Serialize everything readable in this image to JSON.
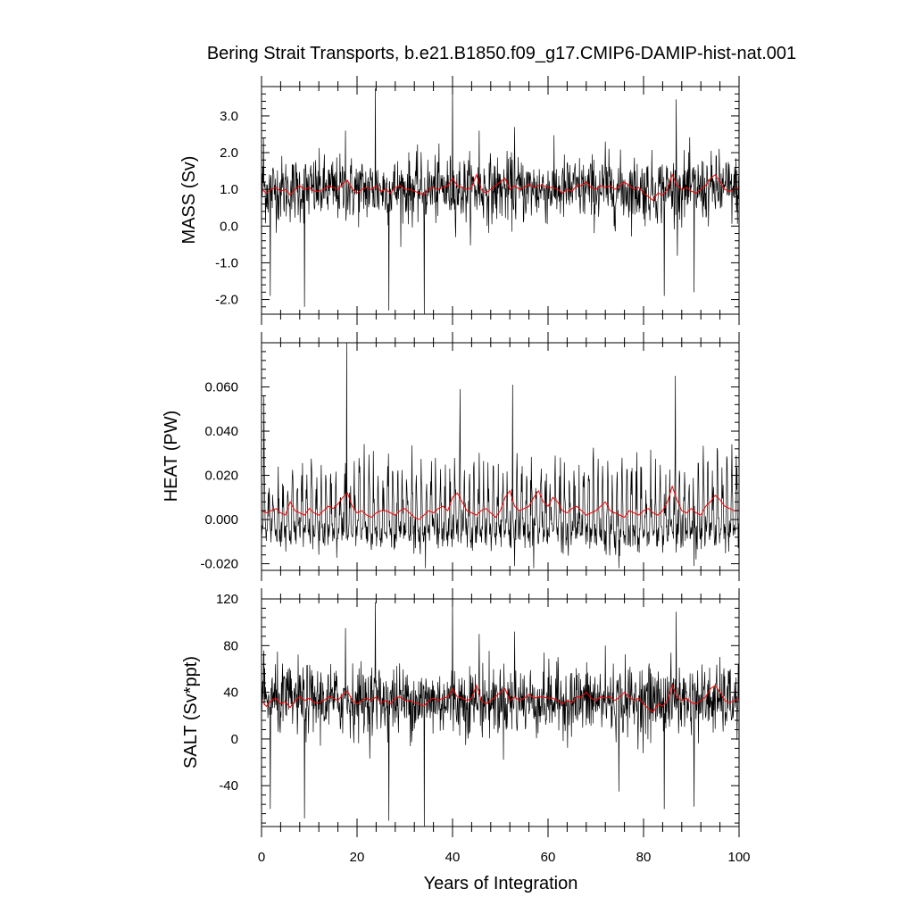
{
  "title": "Bering Strait Transports, b.e21.B1850.f09_g17.CMIP6-DAMIP-hist-nat.001",
  "xlabel": "Years of Integration",
  "colors": {
    "raw": "#000000",
    "smooth": "#ff0000",
    "frame": "#000000"
  },
  "chart_data": [
    {
      "type": "line",
      "panel": "mass",
      "title": "",
      "xlabel": "",
      "ylabel": "MASS (Sv)",
      "xlim": [
        0,
        100
      ],
      "ylim": [
        -2.4,
        3.8
      ],
      "yticks": [
        -2.0,
        -1.0,
        0.0,
        1.0,
        2.0,
        3.0
      ],
      "ytick_labels": [
        "-2.0",
        "-1.0",
        "0.0",
        "1.0",
        "2.0",
        "3.0"
      ],
      "xticks": [
        0,
        20,
        40,
        60,
        80,
        100
      ],
      "series": [
        {
          "style": "monthly",
          "samples_per_year": 12,
          "mean": 1.0,
          "sd": 0.45,
          "spikes": [
            {
              "x": 0.4,
              "y": 2.4
            },
            {
              "x": 1.8,
              "y": -1.9
            },
            {
              "x": 9.0,
              "y": -2.2
            },
            {
              "x": 17.6,
              "y": 2.6
            },
            {
              "x": 23.8,
              "y": 3.75
            },
            {
              "x": 26.7,
              "y": -2.3
            },
            {
              "x": 34.1,
              "y": -2.4
            },
            {
              "x": 40.0,
              "y": 3.8
            },
            {
              "x": 45.6,
              "y": 2.6
            },
            {
              "x": 53.0,
              "y": 2.7
            },
            {
              "x": 72.0,
              "y": 2.3
            },
            {
              "x": 84.3,
              "y": -1.9
            },
            {
              "x": 86.8,
              "y": 3.45
            },
            {
              "x": 90.6,
              "y": -1.8
            },
            {
              "x": 95.8,
              "y": 2.1
            }
          ]
        },
        {
          "style": "annual",
          "values": [
            1.0,
            0.9,
            1.0,
            1.05,
            0.95,
            1.0,
            0.85,
            1.0,
            1.1,
            1.0,
            1.05,
            0.95,
            0.95,
            1.0,
            1.1,
            1.05,
            1.0,
            1.15,
            1.25,
            1.0,
            0.9,
            1.0,
            1.05,
            1.0,
            1.1,
            0.95,
            1.0,
            0.9,
            1.05,
            1.1,
            1.0,
            1.0,
            0.95,
            0.9,
            0.85,
            1.0,
            1.05,
            1.0,
            1.05,
            1.1,
            1.3,
            1.1,
            1.05,
            1.0,
            1.05,
            1.4,
            1.0,
            0.9,
            1.0,
            1.1,
            1.2,
            1.3,
            1.0,
            1.1,
            1.0,
            1.05,
            1.15,
            1.05,
            1.1,
            1.1,
            1.05,
            1.05,
            1.0,
            0.9,
            1.0,
            0.95,
            1.1,
            1.1,
            1.2,
            1.05,
            1.0,
            1.1,
            1.05,
            1.1,
            1.0,
            1.1,
            1.2,
            1.1,
            1.0,
            1.05,
            0.9,
            0.8,
            0.7,
            0.9,
            0.85,
            1.0,
            1.4,
            1.1,
            1.0,
            1.05,
            0.95,
            0.9,
            1.0,
            1.1,
            1.3,
            1.4,
            1.2,
            1.0,
            0.95,
            1.0,
            1.05
          ]
        }
      ]
    },
    {
      "type": "line",
      "panel": "heat",
      "title": "",
      "xlabel": "",
      "ylabel": "HEAT (PW)",
      "xlim": [
        0,
        100
      ],
      "ylim": [
        -0.023,
        0.08
      ],
      "yticks": [
        -0.02,
        0.0,
        0.02,
        0.04,
        0.06
      ],
      "ytick_labels": [
        "-0.020",
        "0.000",
        "0.020",
        "0.040",
        "0.060"
      ],
      "xticks": [
        0,
        20,
        40,
        60,
        80,
        100
      ],
      "series": [
        {
          "style": "monthly-seasonal",
          "samples_per_year": 12,
          "base": -0.006,
          "sd": 0.004,
          "summer_amp": 0.03,
          "spikes": [
            {
              "x": 0.5,
              "y": 0.056
            },
            {
              "x": 17.8,
              "y": 0.08
            },
            {
              "x": 41.6,
              "y": 0.059
            },
            {
              "x": 52.6,
              "y": 0.061
            },
            {
              "x": 86.7,
              "y": 0.065
            },
            {
              "x": 34.3,
              "y": -0.022
            },
            {
              "x": 57.0,
              "y": -0.022
            },
            {
              "x": 74.8,
              "y": -0.022
            },
            {
              "x": 90.6,
              "y": -0.021
            }
          ]
        },
        {
          "style": "annual",
          "values": [
            0.004,
            0.003,
            0.004,
            0.005,
            0.003,
            0.002,
            0.008,
            0.004,
            0.003,
            0.002,
            0.005,
            0.003,
            0.002,
            0.004,
            0.006,
            0.005,
            0.007,
            0.01,
            0.012,
            0.006,
            0.003,
            0.004,
            0.002,
            0.001,
            0.003,
            0.004,
            0.004,
            0.003,
            0.002,
            0.004,
            0.005,
            0.003,
            0.001,
            0.0,
            0.002,
            0.004,
            0.003,
            0.005,
            0.006,
            0.004,
            0.01,
            0.012,
            0.008,
            0.004,
            0.003,
            0.002,
            0.004,
            0.005,
            0.003,
            0.001,
            0.004,
            0.01,
            0.013,
            0.006,
            0.004,
            0.005,
            0.006,
            0.01,
            0.013,
            0.008,
            0.006,
            0.01,
            0.008,
            0.004,
            0.003,
            0.005,
            0.006,
            0.004,
            0.002,
            0.003,
            0.004,
            0.006,
            0.008,
            0.004,
            0.003,
            0.002,
            0.001,
            0.004,
            0.003,
            0.002,
            0.004,
            0.005,
            0.003,
            0.002,
            0.004,
            0.008,
            0.015,
            0.009,
            0.004,
            0.003,
            0.005,
            0.003,
            0.002,
            0.006,
            0.008,
            0.011,
            0.009,
            0.006,
            0.005,
            0.004,
            0.004
          ]
        }
      ]
    },
    {
      "type": "line",
      "panel": "salt",
      "title": "",
      "xlabel": "",
      "ylabel": "SALT (Sv*ppt)",
      "xlim": [
        0,
        100
      ],
      "ylim": [
        -75,
        120
      ],
      "yticks": [
        -40,
        0,
        40,
        80,
        120
      ],
      "ytick_labels": [
        "-40",
        "0",
        "40",
        "80",
        "120"
      ],
      "xticks": [
        0,
        20,
        40,
        60,
        80,
        100
      ],
      "series": [
        {
          "style": "monthly",
          "samples_per_year": 12,
          "mean": 33,
          "sd": 15,
          "spikes": [
            {
              "x": 0.4,
              "y": 70
            },
            {
              "x": 1.8,
              "y": -60
            },
            {
              "x": 9.0,
              "y": -68
            },
            {
              "x": 17.6,
              "y": 95
            },
            {
              "x": 23.8,
              "y": 117
            },
            {
              "x": 26.7,
              "y": -70
            },
            {
              "x": 34.1,
              "y": -75
            },
            {
              "x": 40.0,
              "y": 120
            },
            {
              "x": 45.6,
              "y": 90
            },
            {
              "x": 53.0,
              "y": 92
            },
            {
              "x": 72.0,
              "y": 80
            },
            {
              "x": 74.8,
              "y": -45
            },
            {
              "x": 84.3,
              "y": -60
            },
            {
              "x": 86.8,
              "y": 109
            },
            {
              "x": 90.6,
              "y": -58
            }
          ]
        },
        {
          "style": "annual",
          "values": [
            33,
            28,
            33,
            35,
            30,
            32,
            27,
            33,
            36,
            33,
            35,
            31,
            31,
            33,
            36,
            35,
            33,
            38,
            41,
            33,
            30,
            33,
            35,
            33,
            36,
            31,
            33,
            30,
            35,
            36,
            33,
            33,
            31,
            30,
            28,
            33,
            35,
            33,
            35,
            36,
            43,
            36,
            35,
            33,
            35,
            46,
            33,
            30,
            33,
            36,
            40,
            43,
            33,
            36,
            33,
            35,
            38,
            35,
            36,
            36,
            35,
            35,
            33,
            30,
            33,
            31,
            36,
            36,
            40,
            35,
            33,
            36,
            35,
            36,
            33,
            36,
            40,
            36,
            33,
            35,
            30,
            26,
            23,
            30,
            28,
            33,
            46,
            36,
            33,
            35,
            31,
            30,
            33,
            36,
            43,
            46,
            40,
            33,
            31,
            33,
            35
          ]
        }
      ]
    }
  ]
}
